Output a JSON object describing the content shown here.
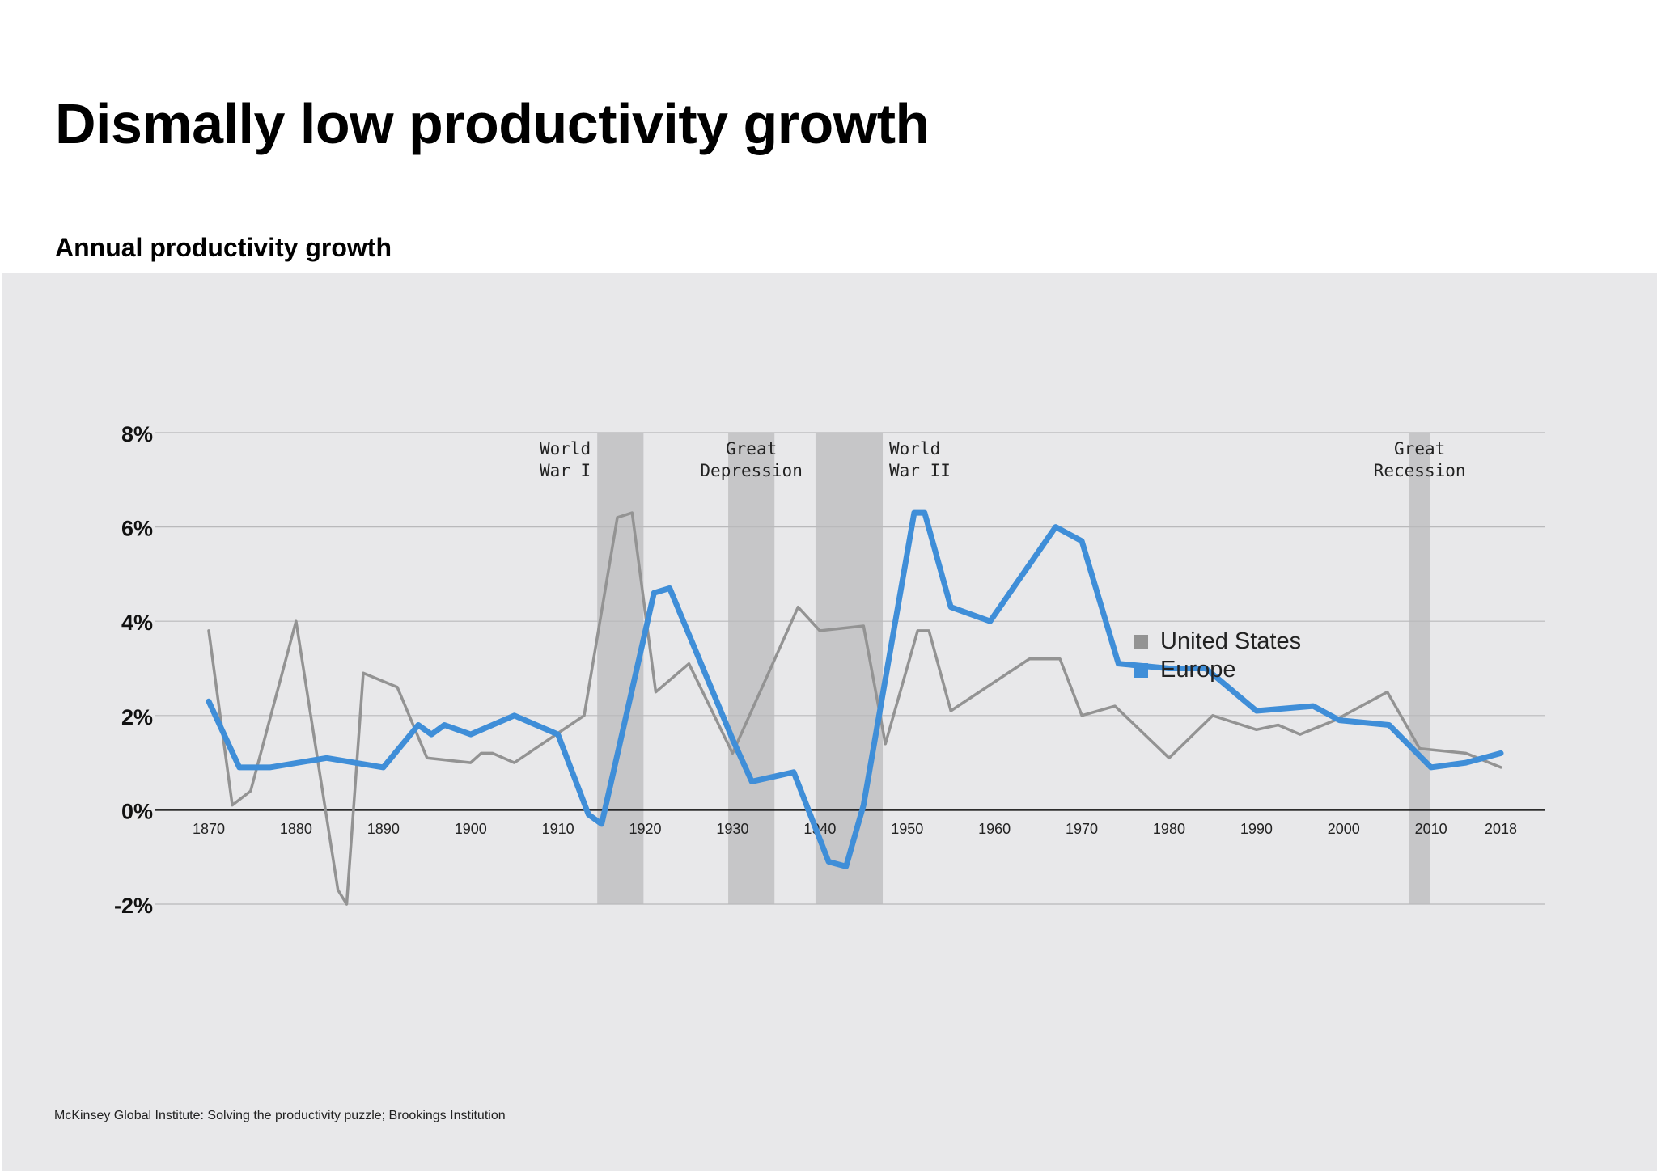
{
  "title": "Dismally low productivity growth",
  "subtitle": "Annual productivity growth",
  "source": "McKinsey Global Institute: Solving the productivity puzzle; Brookings Institution",
  "legend": [
    {
      "label": "United States",
      "color": "#939393"
    },
    {
      "label": "Europe",
      "color": "#3f8ed8"
    }
  ],
  "chart_data": {
    "type": "line",
    "title": "",
    "xlabel": "",
    "ylabel": "",
    "xlim": [
      1870,
      2018
    ],
    "ylim": [
      -2,
      8
    ],
    "grid": true,
    "legend_position": "top-right",
    "x_ticks": [
      "1870",
      "1880",
      "1890",
      "1900",
      "1910",
      "1920",
      "1930",
      "1940",
      "1950",
      "1960",
      "1970",
      "1980",
      "1990",
      "2000",
      "2010",
      "2018"
    ],
    "y_ticks": [
      "8%",
      "6%",
      "4%",
      "2%",
      "0%",
      "-2%"
    ],
    "bands": [
      {
        "label_lines": [
          "World",
          "War I"
        ],
        "start": 1914.5,
        "end": 1919.8,
        "label_align": "end"
      },
      {
        "label_lines": [
          "Great",
          "Depression"
        ],
        "start": 1929.5,
        "end": 1934.8,
        "label_align": "middle"
      },
      {
        "label_lines": [
          "World",
          "War II"
        ],
        "start": 1939.5,
        "end": 1947.2,
        "label_align": "start"
      },
      {
        "label_lines": [
          "Great",
          "Recession"
        ],
        "start": 2007.5,
        "end": 2009.9,
        "label_align": "middle"
      }
    ],
    "series": [
      {
        "name": "United States",
        "color": "#939393",
        "points": [
          [
            1870,
            3.8
          ],
          [
            1872.7,
            0.1
          ],
          [
            1874.8,
            0.4
          ],
          [
            1880,
            4.0
          ],
          [
            1884.8,
            -1.7
          ],
          [
            1885.8,
            -2.0
          ],
          [
            1887.7,
            2.9
          ],
          [
            1891.6,
            2.6
          ],
          [
            1895,
            1.1
          ],
          [
            1900,
            1.0
          ],
          [
            1901.2,
            1.2
          ],
          [
            1902.5,
            1.2
          ],
          [
            1905,
            1.0
          ],
          [
            1913,
            2.0
          ],
          [
            1916.8,
            6.2
          ],
          [
            1918.5,
            6.3
          ],
          [
            1921.2,
            2.5
          ],
          [
            1925,
            3.1
          ],
          [
            1930,
            1.2
          ],
          [
            1937.5,
            4.3
          ],
          [
            1940,
            3.8
          ],
          [
            1945,
            3.9
          ],
          [
            1947.5,
            1.4
          ],
          [
            1951.2,
            3.8
          ],
          [
            1952.5,
            3.8
          ],
          [
            1955,
            2.1
          ],
          [
            1964,
            3.2
          ],
          [
            1967.5,
            3.2
          ],
          [
            1970,
            2.0
          ],
          [
            1973.8,
            2.2
          ],
          [
            1980,
            1.1
          ],
          [
            1985,
            2.0
          ],
          [
            1990,
            1.7
          ],
          [
            1992.5,
            1.8
          ],
          [
            1995,
            1.6
          ],
          [
            1999,
            1.9
          ],
          [
            2005,
            2.5
          ],
          [
            2008.7,
            1.3
          ],
          [
            2014,
            1.2
          ],
          [
            2018,
            0.9
          ]
        ]
      },
      {
        "name": "Europe",
        "color": "#3f8ed8",
        "points": [
          [
            1870,
            2.3
          ],
          [
            1873.5,
            0.9
          ],
          [
            1877,
            0.9
          ],
          [
            1883.5,
            1.1
          ],
          [
            1890,
            0.9
          ],
          [
            1894,
            1.8
          ],
          [
            1895.5,
            1.6
          ],
          [
            1897,
            1.8
          ],
          [
            1900,
            1.6
          ],
          [
            1905,
            2.0
          ],
          [
            1910,
            1.6
          ],
          [
            1913.5,
            -0.1
          ],
          [
            1915,
            -0.3
          ],
          [
            1921,
            4.6
          ],
          [
            1922.8,
            4.7
          ],
          [
            1930,
            1.5
          ],
          [
            1932.2,
            0.6
          ],
          [
            1937,
            0.8
          ],
          [
            1941,
            -1.1
          ],
          [
            1943,
            -1.2
          ],
          [
            1945,
            0.1
          ],
          [
            1950.8,
            6.3
          ],
          [
            1952,
            6.3
          ],
          [
            1955,
            4.3
          ],
          [
            1959.5,
            4.0
          ],
          [
            1967,
            6.0
          ],
          [
            1970,
            5.7
          ],
          [
            1974.2,
            3.1
          ],
          [
            1980,
            3.0
          ],
          [
            1984.2,
            3.0
          ],
          [
            1990,
            2.1
          ],
          [
            1996.5,
            2.2
          ],
          [
            1999.5,
            1.9
          ],
          [
            2005.2,
            1.8
          ],
          [
            2010,
            0.9
          ],
          [
            2014,
            1.0
          ],
          [
            2018,
            1.2
          ]
        ]
      }
    ]
  }
}
